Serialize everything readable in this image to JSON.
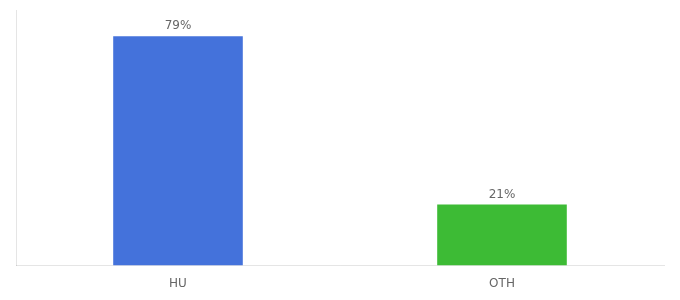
{
  "chart_data": {
    "type": "bar",
    "categories": [
      "HU",
      "OTH"
    ],
    "values": [
      79,
      21
    ],
    "value_labels": [
      "79%",
      "21%"
    ],
    "colors": [
      "#4472db",
      "#3dbb35"
    ],
    "ylim": [
      0,
      88
    ],
    "data_labels": true,
    "tick_labels": "x",
    "grid": false
  }
}
